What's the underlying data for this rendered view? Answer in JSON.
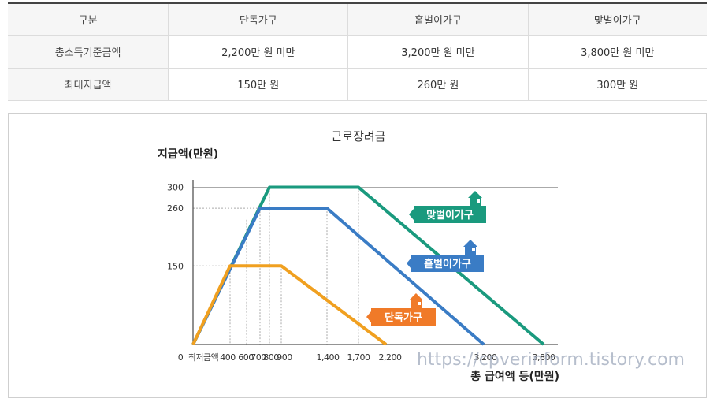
{
  "table": {
    "headers": [
      "구분",
      "단독가구",
      "홑벌이가구",
      "맞벌이가구"
    ],
    "rows": [
      [
        "총소득기준금액",
        "2,200만 원 미만",
        "3,200만 원 미만",
        "3,800만 원 미만"
      ],
      [
        "최대지급액",
        "150만 원",
        "260만 원",
        "300만 원"
      ]
    ]
  },
  "chart_data": {
    "type": "line",
    "title": "근로장려금",
    "ylabel": "지급액(만원)",
    "xlabel": "총 급여액 등(만원)",
    "y_ticks": [
      "300",
      "260",
      "150"
    ],
    "x_ticks": [
      "0",
      "최저금액",
      "400",
      "600",
      "700",
      "800",
      "900",
      "1,400",
      "1,700",
      "2,200",
      "3,200",
      "3,800"
    ],
    "series": [
      {
        "name": "맞벌이가구",
        "color": "#1a9a7e",
        "points": [
          [
            0,
            0
          ],
          [
            800,
            300
          ],
          [
            1700,
            300
          ],
          [
            3800,
            0
          ]
        ]
      },
      {
        "name": "홑벌이가구",
        "color": "#3a7cc5",
        "points": [
          [
            0,
            0
          ],
          [
            700,
            260
          ],
          [
            1400,
            260
          ],
          [
            3200,
            0
          ]
        ]
      },
      {
        "name": "단독가구",
        "color": "#f0a020",
        "points": [
          [
            0,
            0
          ],
          [
            400,
            150
          ],
          [
            900,
            150
          ],
          [
            2200,
            0
          ]
        ]
      }
    ],
    "label_colors": {
      "맞벌이가구": "#1a9a7e",
      "홑벌이가구": "#3a7cc5",
      "단독가구": "#f07a28"
    },
    "grid": "dashed guide lines at breakpoints",
    "legend": "labels with house icons beside each line"
  },
  "watermark": "https://cpverinform.tistory.com"
}
